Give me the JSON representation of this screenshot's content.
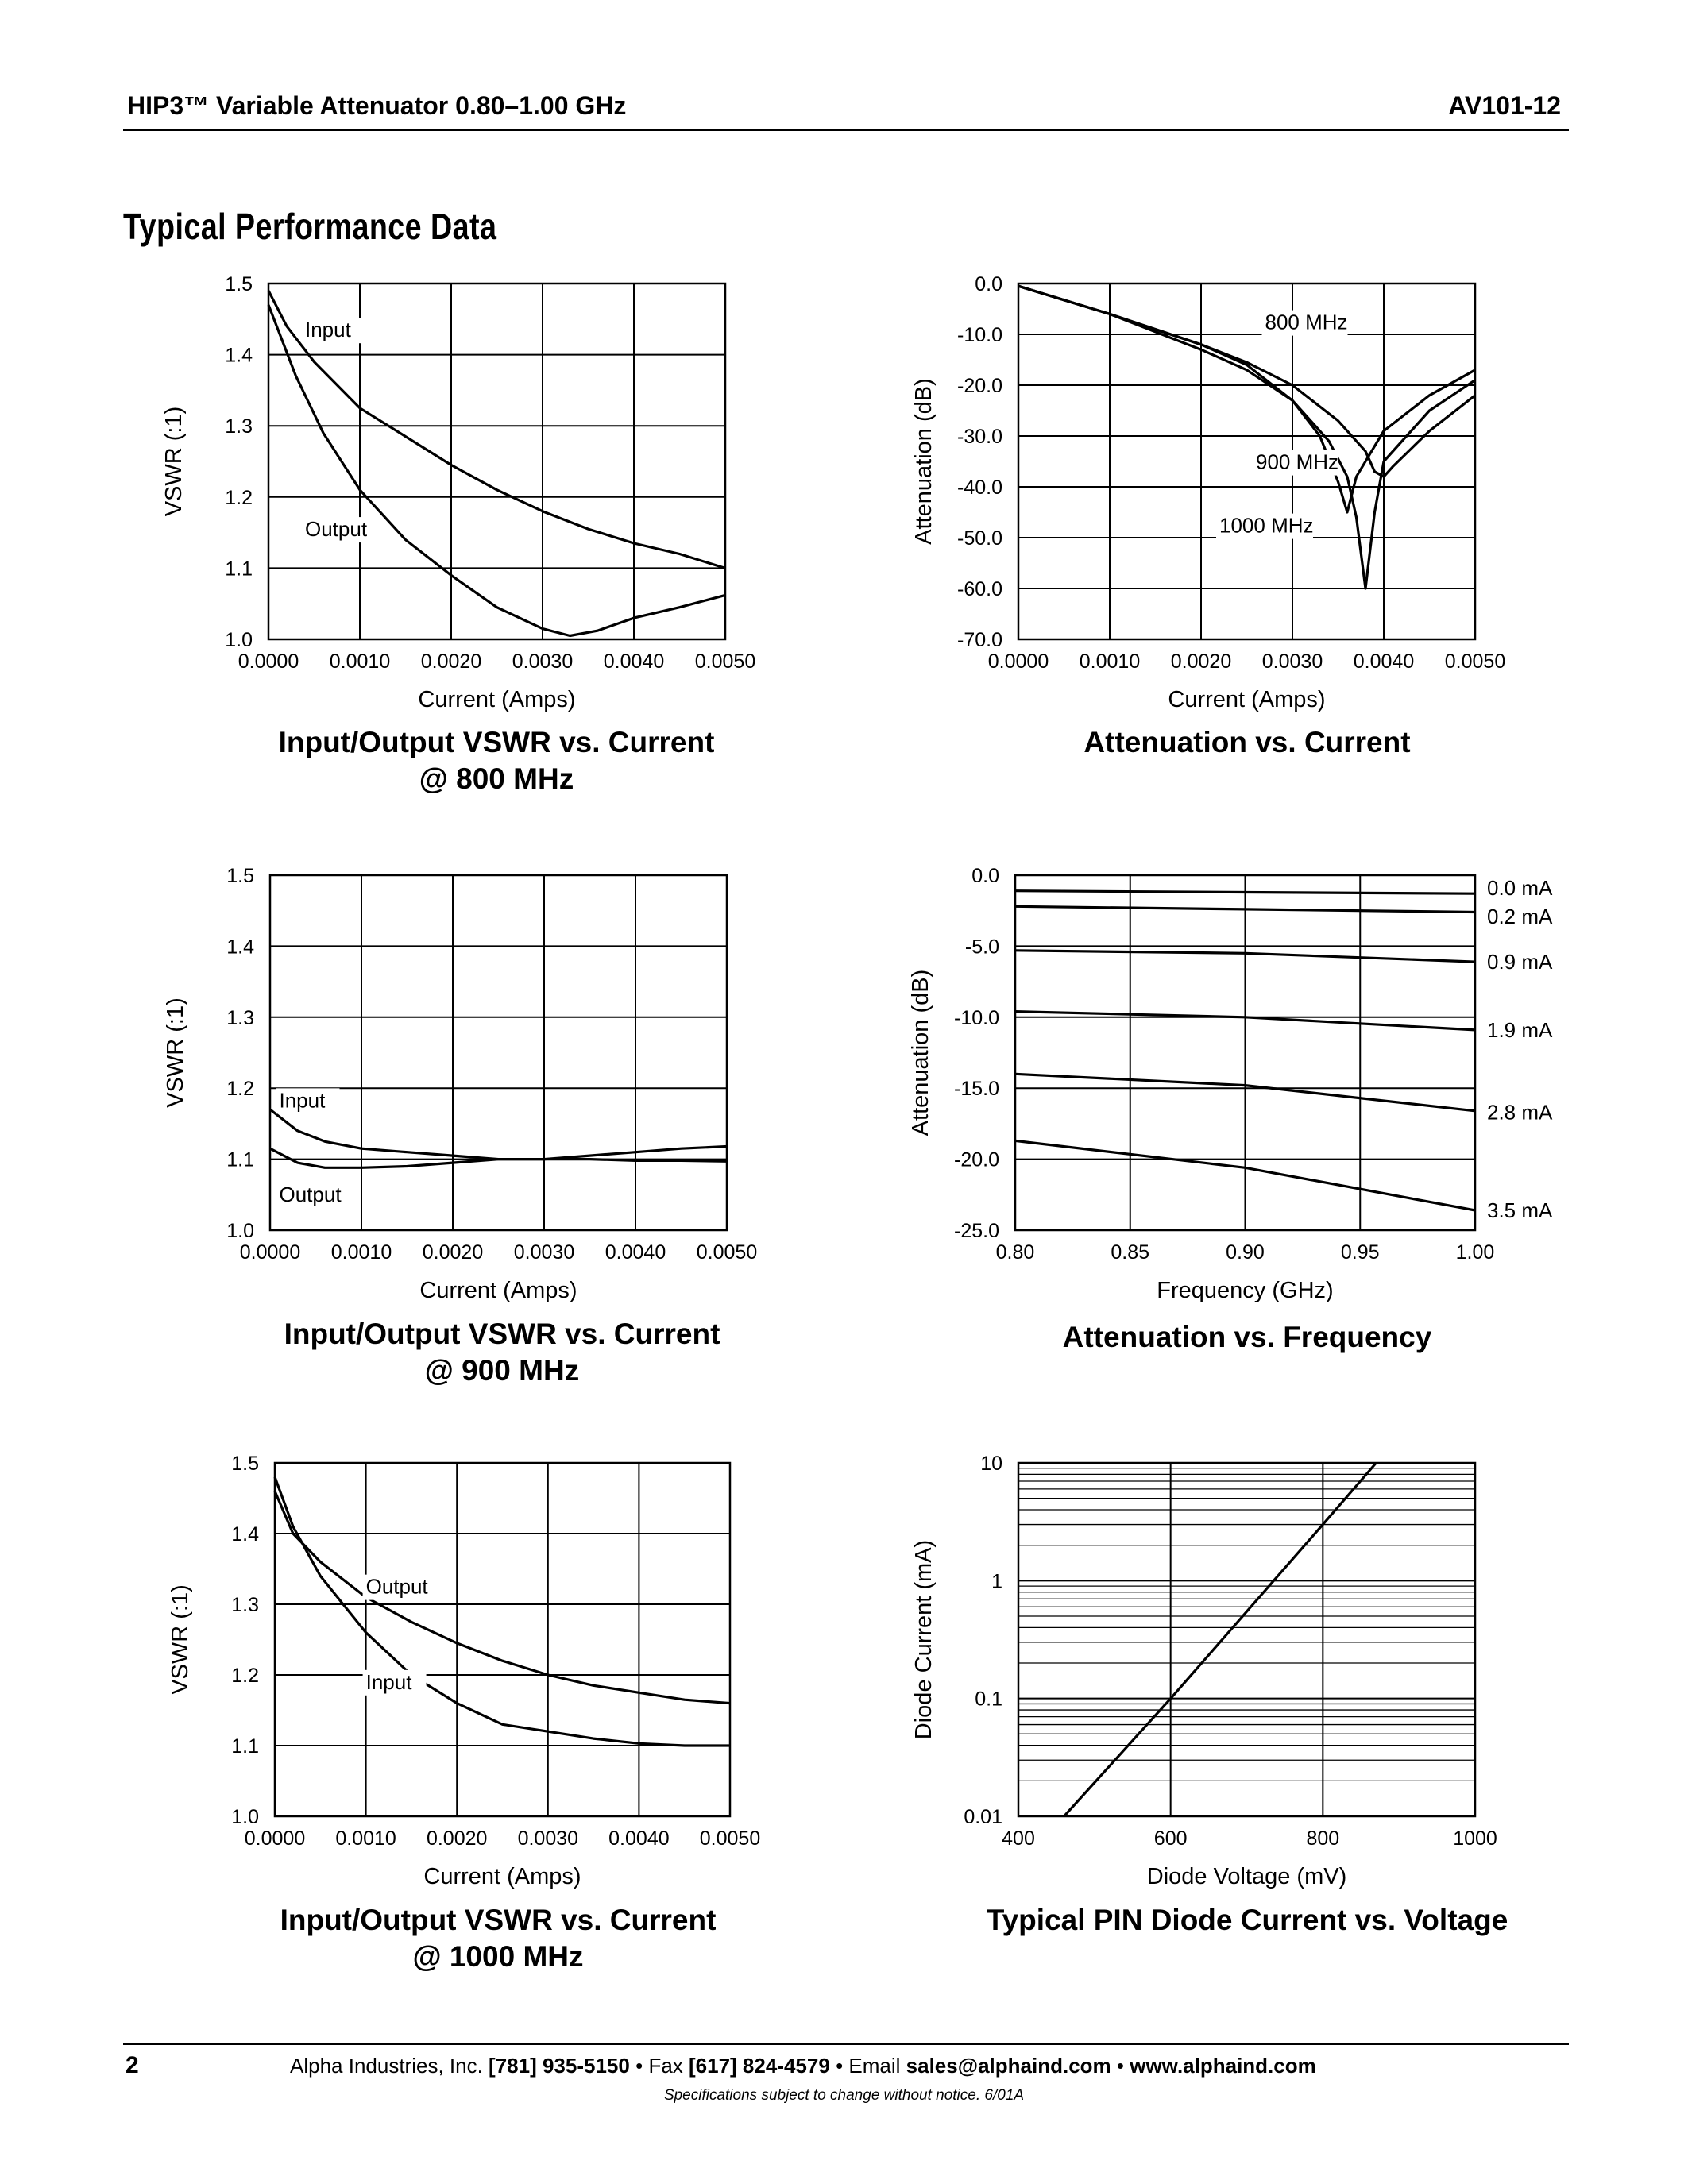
{
  "header": {
    "title": "HIP3™ Variable Attenuator 0.80–1.00 GHz",
    "doc_id": "AV101-12"
  },
  "section_title": "Typical Performance Data",
  "chart_data": [
    {
      "id": "vswr800",
      "type": "line",
      "caption": [
        "Input/Output VSWR vs. Current",
        "@ 800 MHz"
      ],
      "xlabel": "Current (Amps)",
      "ylabel": "VSWR (:1)",
      "xlim": [
        0,
        0.005
      ],
      "ylim": [
        1.0,
        1.5
      ],
      "xticks": [
        "0.0000",
        "0.0010",
        "0.0020",
        "0.0030",
        "0.0040",
        "0.0050"
      ],
      "yticks": [
        "1.0",
        "1.1",
        "1.2",
        "1.3",
        "1.4",
        "1.5"
      ],
      "grid": true,
      "series": [
        {
          "name": "Input",
          "x": [
            0,
            0.0002,
            0.0005,
            0.001,
            0.0015,
            0.002,
            0.0025,
            0.003,
            0.0035,
            0.004,
            0.0045,
            0.005
          ],
          "y": [
            1.49,
            1.44,
            1.39,
            1.325,
            1.285,
            1.245,
            1.21,
            1.18,
            1.155,
            1.135,
            1.12,
            1.1
          ]
        },
        {
          "name": "Output",
          "x": [
            0,
            0.0003,
            0.0006,
            0.001,
            0.0015,
            0.002,
            0.0025,
            0.003,
            0.0033,
            0.0036,
            0.004,
            0.0045,
            0.005
          ],
          "y": [
            1.47,
            1.37,
            1.29,
            1.21,
            1.14,
            1.09,
            1.045,
            1.015,
            1.005,
            1.012,
            1.03,
            1.045,
            1.062
          ]
        }
      ],
      "labels": [
        {
          "text": "Input",
          "x": 0.0004,
          "y": 1.425
        },
        {
          "text": "Output",
          "x": 0.0004,
          "y": 1.145
        }
      ]
    },
    {
      "id": "att_current",
      "type": "line",
      "caption": [
        "Attenuation vs. Current"
      ],
      "xlabel": "Current (Amps)",
      "ylabel": "Attenuation (dB)",
      "xlim": [
        0,
        0.005
      ],
      "ylim": [
        -70,
        0
      ],
      "xticks": [
        "0.0000",
        "0.0010",
        "0.0020",
        "0.0030",
        "0.0040",
        "0.0050"
      ],
      "yticks": [
        "0.0",
        "-10.0",
        "-20.0",
        "-30.0",
        "-40.0",
        "-50.0",
        "-60.0",
        "-70.0"
      ],
      "grid": true,
      "series": [
        {
          "name": "800 MHz",
          "x": [
            0,
            0.001,
            0.002,
            0.0025,
            0.003,
            0.0033,
            0.0035,
            0.0036,
            0.0037,
            0.004,
            0.0045,
            0.005
          ],
          "y": [
            -0.5,
            -6,
            -13,
            -17,
            -23,
            -30,
            -39,
            -45,
            -38,
            -29,
            -22,
            -17
          ]
        },
        {
          "name": "900 MHz",
          "x": [
            0,
            0.001,
            0.002,
            0.0025,
            0.003,
            0.0034,
            0.0036,
            0.0037,
            0.0038,
            0.0039,
            0.004,
            0.0045,
            0.005
          ],
          "y": [
            -0.5,
            -6,
            -12,
            -16,
            -23,
            -31,
            -38,
            -46,
            -60,
            -45,
            -35,
            -25,
            -19
          ]
        },
        {
          "name": "1000 MHz",
          "x": [
            0,
            0.001,
            0.002,
            0.0025,
            0.003,
            0.0035,
            0.0038,
            0.0039,
            0.004,
            0.0041,
            0.0045,
            0.005
          ],
          "y": [
            -0.5,
            -6,
            -12,
            -15.5,
            -20,
            -27,
            -33,
            -37,
            -38,
            -36,
            -29,
            -22
          ]
        }
      ],
      "labels": [
        {
          "text": "800 MHz",
          "x": 0.0027,
          "y": -9
        },
        {
          "text": "900 MHz",
          "x": 0.0026,
          "y": -36.5
        },
        {
          "text": "1000 MHz",
          "x": 0.0022,
          "y": -49
        }
      ]
    },
    {
      "id": "vswr900",
      "type": "line",
      "caption": [
        "Input/Output VSWR vs. Current",
        "@ 900 MHz"
      ],
      "xlabel": "Current (Amps)",
      "ylabel": "VSWR (:1)",
      "xlim": [
        0,
        0.005
      ],
      "ylim": [
        1.0,
        1.5
      ],
      "xticks": [
        "0.0000",
        "0.0010",
        "0.0020",
        "0.0030",
        "0.0040",
        "0.0050"
      ],
      "yticks": [
        "1.0",
        "1.1",
        "1.2",
        "1.3",
        "1.4",
        "1.5"
      ],
      "grid": true,
      "series": [
        {
          "name": "Input",
          "x": [
            0,
            0.0003,
            0.0006,
            0.001,
            0.0015,
            0.002,
            0.0025,
            0.003,
            0.0035,
            0.004,
            0.0045,
            0.005
          ],
          "y": [
            1.17,
            1.14,
            1.125,
            1.115,
            1.11,
            1.105,
            1.1,
            1.1,
            1.1,
            1.098,
            1.098,
            1.097
          ]
        },
        {
          "name": "Output",
          "x": [
            0,
            0.0003,
            0.0006,
            0.001,
            0.0015,
            0.002,
            0.0025,
            0.003,
            0.0035,
            0.004,
            0.0045,
            0.005
          ],
          "y": [
            1.115,
            1.095,
            1.088,
            1.088,
            1.09,
            1.095,
            1.1,
            1.1,
            1.105,
            1.11,
            1.115,
            1.118
          ]
        }
      ],
      "labels": [
        {
          "text": "Input",
          "x": 0.0001,
          "y": 1.173
        },
        {
          "text": "Output",
          "x": 0.0001,
          "y": 1.04
        }
      ]
    },
    {
      "id": "att_freq",
      "type": "line",
      "caption": [
        "Attenuation vs. Frequency"
      ],
      "xlabel": "Frequency (GHz)",
      "ylabel": "Attenuation (dB)",
      "xlim": [
        0.8,
        1.0
      ],
      "ylim": [
        -25,
        0
      ],
      "xticks": [
        "0.80",
        "0.85",
        "0.90",
        "0.95",
        "1.00"
      ],
      "yticks": [
        "0.0",
        "-5.0",
        "-10.0",
        "-15.0",
        "-20.0",
        "-25.0"
      ],
      "grid": true,
      "series": [
        {
          "name": "0.0 mA",
          "x": [
            0.8,
            0.9,
            1.0
          ],
          "y": [
            -1.1,
            -1.2,
            -1.3
          ]
        },
        {
          "name": "0.2 mA",
          "x": [
            0.8,
            0.9,
            1.0
          ],
          "y": [
            -2.2,
            -2.4,
            -2.6
          ]
        },
        {
          "name": "0.9 mA",
          "x": [
            0.8,
            0.9,
            1.0
          ],
          "y": [
            -5.3,
            -5.5,
            -6.1
          ]
        },
        {
          "name": "1.9 mA",
          "x": [
            0.8,
            0.9,
            1.0
          ],
          "y": [
            -9.6,
            -10.0,
            -10.9
          ]
        },
        {
          "name": "2.8 mA",
          "x": [
            0.8,
            0.9,
            1.0
          ],
          "y": [
            -14.0,
            -14.8,
            -16.6
          ]
        },
        {
          "name": "3.5 mA",
          "x": [
            0.8,
            0.9,
            1.0
          ],
          "y": [
            -18.7,
            -20.6,
            -23.6
          ]
        }
      ],
      "series_label_y": [
        -0.9,
        -2.9,
        -6.1,
        -10.9,
        -16.7,
        -23.6
      ]
    },
    {
      "id": "vswr1000",
      "type": "line",
      "caption": [
        "Input/Output VSWR vs. Current",
        "@ 1000 MHz"
      ],
      "xlabel": "Current (Amps)",
      "ylabel": "VSWR (:1)",
      "xlim": [
        0,
        0.005
      ],
      "ylim": [
        1.0,
        1.5
      ],
      "xticks": [
        "0.0000",
        "0.0010",
        "0.0020",
        "0.0030",
        "0.0040",
        "0.0050"
      ],
      "yticks": [
        "1.0",
        "1.1",
        "1.2",
        "1.3",
        "1.4",
        "1.5"
      ],
      "grid": true,
      "series": [
        {
          "name": "Output",
          "x": [
            0,
            0.0002,
            0.0005,
            0.001,
            0.0015,
            0.002,
            0.0025,
            0.003,
            0.0035,
            0.004,
            0.0045,
            0.005
          ],
          "y": [
            1.46,
            1.4,
            1.36,
            1.31,
            1.275,
            1.245,
            1.22,
            1.2,
            1.185,
            1.175,
            1.165,
            1.16
          ]
        },
        {
          "name": "Input",
          "x": [
            0,
            0.0002,
            0.0005,
            0.001,
            0.0015,
            0.002,
            0.0025,
            0.003,
            0.0035,
            0.004,
            0.0045,
            0.005
          ],
          "y": [
            1.48,
            1.41,
            1.34,
            1.26,
            1.2,
            1.16,
            1.13,
            1.12,
            1.11,
            1.103,
            1.1,
            1.1
          ]
        }
      ],
      "labels": [
        {
          "text": "Output",
          "x": 0.001,
          "y": 1.315
        },
        {
          "text": "Input",
          "x": 0.001,
          "y": 1.18
        }
      ]
    },
    {
      "id": "pin_diode",
      "type": "line",
      "caption": [
        "Typical PIN Diode Current vs. Voltage"
      ],
      "xlabel": "Diode Voltage (mV)",
      "ylabel": "Diode Current (mA)",
      "xlim": [
        400,
        1000
      ],
      "ylim": [
        0.01,
        10
      ],
      "yscale": "log",
      "xticks": [
        "400",
        "600",
        "800",
        "1000"
      ],
      "yticks": [
        "0.01",
        "0.1",
        "1",
        "10"
      ],
      "grid": true,
      "series": [
        {
          "name": "",
          "x": [
            460,
            600,
            800,
            870
          ],
          "y": [
            0.01,
            0.1,
            3.0,
            10
          ]
        }
      ]
    }
  ],
  "footer": {
    "page": "2",
    "company": "Alpha Industries, Inc.",
    "phone": "[781] 935-5150",
    "fax_label": "Fax",
    "fax": "[617] 824-4579",
    "email_label": "Email",
    "email": "sales@alphaind.com",
    "web": "www.alphaind.com",
    "sep": "•",
    "note": "Specifications subject to change without notice.  6/01A"
  }
}
